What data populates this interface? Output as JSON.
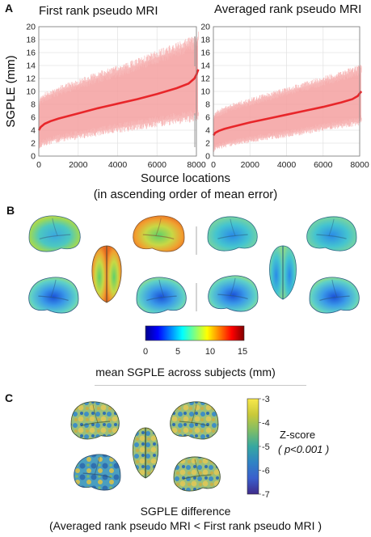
{
  "panels": {
    "a": "A",
    "b": "B",
    "c": "C"
  },
  "chart_data": [
    {
      "type": "area",
      "title": "First rank pseudo MRI",
      "ylabel": "SGPLE (mm)",
      "xlabel": "Source locations",
      "xlabel_line2": "(in ascending order of mean error)",
      "xlim": [
        0,
        8000
      ],
      "ylim": [
        0,
        20
      ],
      "xticks": [
        0,
        2000,
        4000,
        6000,
        8000
      ],
      "yticks": [
        0,
        2,
        4,
        6,
        8,
        10,
        12,
        14,
        16,
        18,
        20
      ],
      "grid": true,
      "series": [
        {
          "kind": "mean-line",
          "color": "#e8262a",
          "x": [
            0,
            100,
            300,
            600,
            1000,
            2000,
            3000,
            4000,
            5000,
            6000,
            7000,
            7600,
            7900,
            8000,
            8100
          ],
          "y": [
            4.0,
            4.5,
            5.0,
            5.4,
            5.8,
            6.6,
            7.4,
            8.1,
            8.8,
            9.6,
            10.5,
            11.2,
            12.0,
            12.6,
            13.4
          ]
        },
        {
          "kind": "error-band",
          "color": "#f4a0a0",
          "x": [
            0,
            100,
            1000,
            2000,
            3000,
            4000,
            5000,
            6000,
            7000,
            8000,
            8100
          ],
          "low": [
            1.0,
            2.0,
            2.8,
            3.3,
            3.9,
            4.4,
            4.9,
            5.4,
            5.9,
            6.4,
            6.6
          ],
          "high": [
            7.5,
            8.8,
            10.0,
            11.0,
            12.1,
            13.0,
            14.0,
            15.2,
            16.3,
            17.5,
            18.0
          ]
        }
      ]
    },
    {
      "type": "area",
      "title": "Averaged rank pseudo MRI",
      "xlim": [
        0,
        8000
      ],
      "ylim": [
        0,
        20
      ],
      "xticks": [
        0,
        2000,
        4000,
        6000,
        8000
      ],
      "yticks": [
        0,
        2,
        4,
        6,
        8,
        10,
        12,
        14,
        16,
        18,
        20
      ],
      "grid": true,
      "series": [
        {
          "kind": "mean-line",
          "color": "#e8262a",
          "x": [
            0,
            100,
            300,
            600,
            1000,
            2000,
            3000,
            4000,
            5000,
            6000,
            7000,
            7600,
            7900,
            8000,
            8100
          ],
          "y": [
            3.2,
            3.6,
            3.9,
            4.2,
            4.5,
            5.2,
            5.8,
            6.4,
            7.0,
            7.6,
            8.3,
            8.8,
            9.3,
            9.7,
            10.0
          ]
        },
        {
          "kind": "error-band",
          "color": "#f4a0a0",
          "x": [
            0,
            100,
            1000,
            2000,
            3000,
            4000,
            5000,
            6000,
            7000,
            8000,
            8100
          ],
          "low": [
            1.0,
            1.4,
            2.1,
            2.6,
            3.1,
            3.5,
            4.0,
            4.5,
            5.0,
            5.5,
            5.8
          ],
          "high": [
            5.8,
            6.4,
            7.5,
            8.3,
            9.1,
            9.9,
            10.7,
            11.5,
            12.3,
            13.2,
            13.6
          ]
        }
      ]
    }
  ],
  "colorbar_b": {
    "ticks": [
      "0",
      "5",
      "10",
      "15"
    ],
    "label": "mean SGPLE across subjects (mm)",
    "colors": [
      "#00008f",
      "#0000ff",
      "#0080ff",
      "#00ffff",
      "#80ff80",
      "#ffff00",
      "#ff8000",
      "#ff0000",
      "#800000"
    ]
  },
  "colorbar_c": {
    "ticks": [
      "-3",
      "-4",
      "-5",
      "-6",
      "-7"
    ],
    "label": "Z-score",
    "pval": "( p<0.001 )",
    "colors": [
      "#f8e84a",
      "#c9c93a",
      "#7fbd67",
      "#36a8a0",
      "#3083c4",
      "#3a5fcc",
      "#3f2b8a"
    ]
  },
  "caption_c": "SGPLE difference",
  "caption_c_line2": "(Averaged rank pseudo MRI < First rank pseudo MRI )"
}
